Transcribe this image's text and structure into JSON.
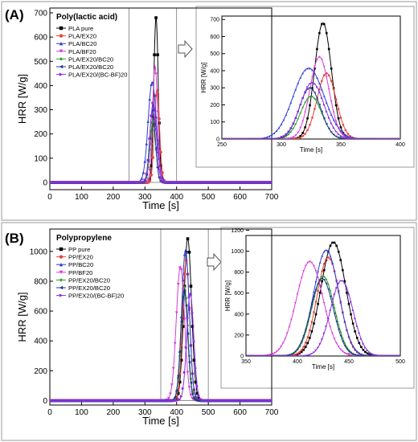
{
  "figure": {
    "panel_labels": [
      "(A)",
      "(B)"
    ]
  },
  "chart_data": [
    {
      "id": "A-main",
      "type": "line",
      "title": "Poly(lactic acid)",
      "xlabel": "Time [s]",
      "ylabel": "HRR [W/g]",
      "xlim": [
        0,
        700
      ],
      "ylim": [
        -30,
        720
      ],
      "xticks": [
        0,
        100,
        200,
        300,
        400,
        500,
        600,
        700
      ],
      "yticks": [
        0,
        100,
        200,
        300,
        400,
        500,
        600,
        700
      ],
      "legend": "top-left",
      "series": [
        {
          "name": "PLA pure",
          "color": "#000000",
          "marker": "square",
          "peak_x": 335,
          "peak_y": 680,
          "width": 7
        },
        {
          "name": "PLA/EX20",
          "color": "#e8423a",
          "marker": "circle",
          "peak_x": 338,
          "peak_y": 385,
          "width": 8
        },
        {
          "name": "PLA/BC20",
          "color": "#2b3dd8",
          "marker": "triangle",
          "peak_x": 323,
          "peak_y": 415,
          "width": 13
        },
        {
          "name": "PLA/BF20",
          "color": "#d63cd6",
          "marker": "triangle-down",
          "peak_x": 332,
          "peak_y": 480,
          "width": 8
        },
        {
          "name": "PLA/EX20/BC20",
          "color": "#2ea02e",
          "marker": "diamond",
          "peak_x": 325,
          "peak_y": 250,
          "width": 9
        },
        {
          "name": "PLA/EX20/BC20",
          "color": "#1e3a8a",
          "marker": "triangle-left",
          "peak_x": 324,
          "peak_y": 300,
          "width": 9
        },
        {
          "name": "PLA/EX20/(BC-BF)20",
          "color": "#8a2be2",
          "marker": "triangle-right",
          "peak_x": 326,
          "peak_y": 330,
          "width": 10
        }
      ]
    },
    {
      "id": "A-inset",
      "type": "line",
      "xlabel": "Time [s]",
      "ylabel": "HRR [W/g]",
      "xlim": [
        250,
        400
      ],
      "ylim": [
        0,
        720
      ],
      "xticks": [
        250,
        300,
        350,
        400
      ],
      "yticks": [
        0,
        100,
        200,
        300,
        400,
        500,
        600,
        700
      ],
      "series_ref": "A-main"
    },
    {
      "id": "B-main",
      "type": "line",
      "title": "Polypropylene",
      "xlabel": "Time [s]",
      "ylabel": "HRR [W/g]",
      "xlim": [
        0,
        700
      ],
      "ylim": [
        -30,
        1150
      ],
      "xticks": [
        0,
        100,
        200,
        300,
        400,
        500,
        600,
        700
      ],
      "yticks": [
        0,
        200,
        400,
        600,
        800,
        1000
      ],
      "legend": "top-left",
      "series": [
        {
          "name": "PP pure",
          "color": "#000000",
          "marker": "square",
          "peak_x": 435,
          "peak_y": 1085,
          "width": 12
        },
        {
          "name": "PP/EX20",
          "color": "#e8423a",
          "marker": "circle",
          "peak_x": 430,
          "peak_y": 940,
          "width": 11
        },
        {
          "name": "PP/BC20",
          "color": "#2b3dd8",
          "marker": "triangle",
          "peak_x": 428,
          "peak_y": 1010,
          "width": 12
        },
        {
          "name": "PP/BF20",
          "color": "#d63cd6",
          "marker": "triangle-down",
          "peak_x": 412,
          "peak_y": 900,
          "width": 13
        },
        {
          "name": "PP/EX20/BC20",
          "color": "#2ea02e",
          "marker": "diamond",
          "peak_x": 425,
          "peak_y": 760,
          "width": 11
        },
        {
          "name": "PP/EX20/BC20",
          "color": "#1e3a8a",
          "marker": "triangle-left",
          "peak_x": 424,
          "peak_y": 740,
          "width": 11
        },
        {
          "name": "PP/EX20/(BC-BF)20",
          "color": "#8a2be2",
          "marker": "triangle-right",
          "peak_x": 443,
          "peak_y": 720,
          "width": 11
        }
      ]
    },
    {
      "id": "B-inset",
      "type": "line",
      "xlabel": "Time [s]",
      "ylabel": "HRR [W/g]",
      "xlim": [
        350,
        500
      ],
      "ylim": [
        0,
        1150
      ],
      "xticks": [
        350,
        400,
        450,
        500
      ],
      "yticks": [
        0,
        200,
        400,
        600,
        800,
        1000,
        1200
      ],
      "series_ref": "B-main"
    }
  ]
}
